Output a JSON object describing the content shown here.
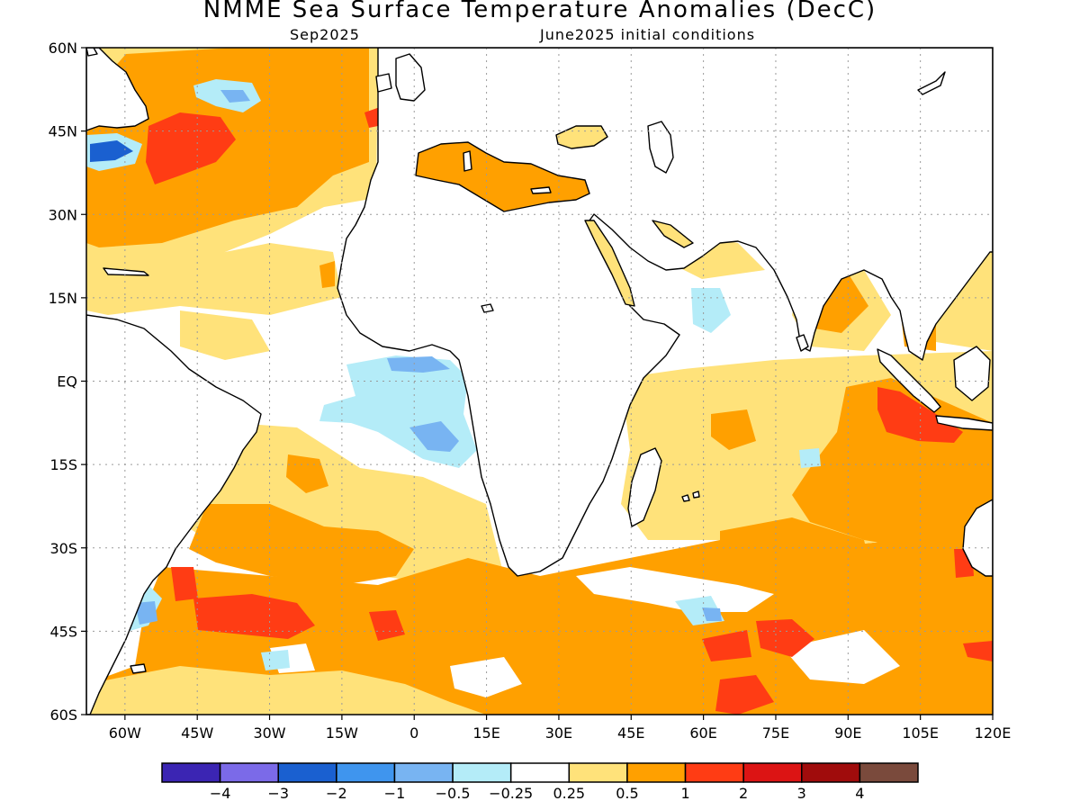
{
  "title": "NMME Sea Surface Temperature Anomalies (DecC)",
  "subtitle_left": "Sep2025",
  "subtitle_right": "June2025 initial conditions",
  "colors": {
    "land": "#ffffff",
    "coast": "#000000",
    "grid": "#9a9a9a"
  },
  "map": {
    "lon_range": [
      -68,
      120
    ],
    "lat_range": [
      -60,
      60
    ],
    "lon_ticks": [
      {
        "value": -60,
        "label": "60W"
      },
      {
        "value": -45,
        "label": "45W"
      },
      {
        "value": -30,
        "label": "30W"
      },
      {
        "value": -15,
        "label": "15W"
      },
      {
        "value": 0,
        "label": "0"
      },
      {
        "value": 15,
        "label": "15E"
      },
      {
        "value": 30,
        "label": "30E"
      },
      {
        "value": 45,
        "label": "45E"
      },
      {
        "value": 60,
        "label": "60E"
      },
      {
        "value": 75,
        "label": "75E"
      },
      {
        "value": 90,
        "label": "90E"
      },
      {
        "value": 105,
        "label": "105E"
      },
      {
        "value": 120,
        "label": "120E"
      }
    ],
    "lat_ticks": [
      {
        "value": 60,
        "label": "60N"
      },
      {
        "value": 45,
        "label": "45N"
      },
      {
        "value": 30,
        "label": "30N"
      },
      {
        "value": 15,
        "label": "15N"
      },
      {
        "value": 0,
        "label": "EQ"
      },
      {
        "value": -15,
        "label": "15S"
      },
      {
        "value": -30,
        "label": "30S"
      },
      {
        "value": -45,
        "label": "45S"
      },
      {
        "value": -60,
        "label": "60S"
      }
    ],
    "grid": true
  },
  "colorbar": {
    "colors": [
      "#3b25b3",
      "#7b6ae8",
      "#1a60d0",
      "#3f95ee",
      "#78b4f2",
      "#b4ecf8",
      "#ffffff",
      "#ffe27a",
      "#ffa000",
      "#ff3c14",
      "#dc1414",
      "#a00c0c",
      "#7a4a3c"
    ],
    "labels": [
      "−4",
      "−3",
      "−2",
      "−1",
      "−0.5",
      "−0.25",
      "0.25",
      "0.5",
      "1",
      "2",
      "3",
      "4"
    ]
  }
}
